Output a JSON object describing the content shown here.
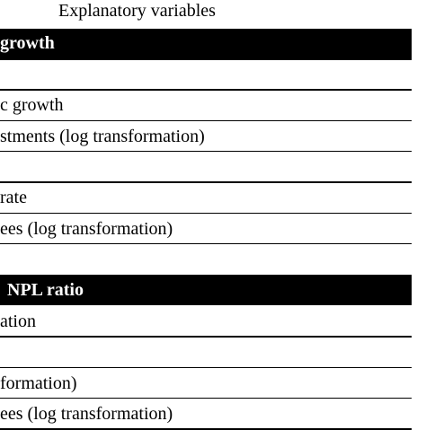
{
  "header": {
    "title": "Explanatory variables"
  },
  "table": {
    "sections": [
      {
        "heading": "growth",
        "rows": [
          "",
          "c growth",
          "stments (log transformation)",
          "",
          "rate",
          "ees (log transformation)",
          ""
        ]
      },
      {
        "heading": "NPL ratio",
        "rows": [
          "ation",
          "",
          "formation)",
          "ees (log transformation)"
        ]
      }
    ]
  }
}
